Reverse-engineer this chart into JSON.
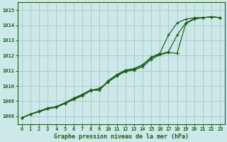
{
  "title": "Graphe pression niveau de la mer (hPa)",
  "bg_color": "#cce8e8",
  "grid_color": "#aacccc",
  "line_color": "#1a5c1a",
  "x_min": -0.5,
  "x_max": 23.5,
  "y_min": 1007.5,
  "y_max": 1015.5,
  "yticks": [
    1008,
    1009,
    1010,
    1011,
    1012,
    1013,
    1014,
    1015
  ],
  "xticks": [
    0,
    1,
    2,
    3,
    4,
    5,
    6,
    7,
    8,
    9,
    10,
    11,
    12,
    13,
    14,
    15,
    16,
    17,
    18,
    19,
    20,
    21,
    22,
    23
  ],
  "series": [
    [
      1007.9,
      1008.15,
      1008.3,
      1008.5,
      1008.6,
      1008.85,
      1009.1,
      1009.35,
      1009.7,
      1009.85,
      1010.25,
      1010.65,
      1010.95,
      1011.05,
      1011.25,
      1011.75,
      1012.05,
      1012.2,
      1012.15,
      1014.1,
      1014.4,
      1014.5,
      1014.55,
      1014.5
    ],
    [
      1007.9,
      1008.15,
      1008.3,
      1008.5,
      1008.6,
      1008.85,
      1009.15,
      1009.4,
      1009.72,
      1009.72,
      1010.3,
      1010.7,
      1011.0,
      1011.1,
      1011.35,
      1011.85,
      1012.1,
      1012.25,
      1013.35,
      1014.15,
      1014.45,
      1014.5,
      1014.55,
      1014.5
    ],
    [
      1007.9,
      1008.15,
      1008.35,
      1008.55,
      1008.65,
      1008.9,
      1009.2,
      1009.45,
      1009.75,
      1009.75,
      1010.35,
      1010.75,
      1011.05,
      1011.15,
      1011.4,
      1011.9,
      1012.15,
      1013.35,
      1014.15,
      1014.4,
      1014.5,
      1014.5,
      1014.55,
      1014.5
    ]
  ]
}
